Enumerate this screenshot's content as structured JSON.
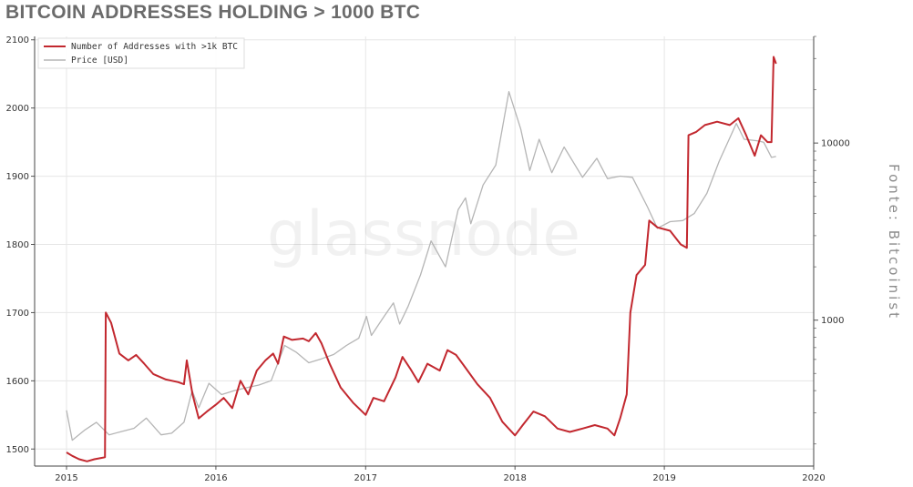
{
  "title": "BITCOIN ADDRESSES HOLDING > 1000 BTC",
  "source_credit": "Fonte: Bitcoinist",
  "watermark": "glassnode",
  "colors": {
    "addresses": "#c2282f",
    "price": "#b5b5b5",
    "grid": "#e6e6e6",
    "title": "#6b6b6b"
  },
  "chart_data": {
    "type": "line",
    "x_ticks": [
      "2015",
      "2016",
      "2017",
      "2018",
      "2019",
      "2020"
    ],
    "xlim": [
      "2014-10-15",
      "2020-01-01"
    ],
    "y_left": {
      "ticks": [
        "1500",
        "1600",
        "1700",
        "1800",
        "1900",
        "2000",
        "2100"
      ],
      "ylim": [
        1475,
        2105
      ]
    },
    "y_right": {
      "scale": "log",
      "ticks": [
        "1000",
        "10000"
      ],
      "ylim": [
        150,
        40000
      ]
    },
    "grid": true,
    "legend_placement": "top-left",
    "series": [
      {
        "name": "Number of Addresses with >1k BTC",
        "axis": "left",
        "points": [
          [
            "2015-01-01",
            1495
          ],
          [
            "2015-01-15",
            1490
          ],
          [
            "2015-02-01",
            1485
          ],
          [
            "2015-02-20",
            1482
          ],
          [
            "2015-03-10",
            1485
          ],
          [
            "2015-03-28",
            1487
          ],
          [
            "2015-04-05",
            1488
          ],
          [
            "2015-04-07",
            1700
          ],
          [
            "2015-04-20",
            1685
          ],
          [
            "2015-05-10",
            1640
          ],
          [
            "2015-06-01",
            1630
          ],
          [
            "2015-06-20",
            1638
          ],
          [
            "2015-07-10",
            1625
          ],
          [
            "2015-08-01",
            1610
          ],
          [
            "2015-09-01",
            1602
          ],
          [
            "2015-10-01",
            1598
          ],
          [
            "2015-10-15",
            1595
          ],
          [
            "2015-10-22",
            1630
          ],
          [
            "2015-11-05",
            1580
          ],
          [
            "2015-11-20",
            1545
          ],
          [
            "2015-12-10",
            1555
          ],
          [
            "2016-01-01",
            1565
          ],
          [
            "2016-01-20",
            1575
          ],
          [
            "2016-02-10",
            1560
          ],
          [
            "2016-03-01",
            1600
          ],
          [
            "2016-03-20",
            1580
          ],
          [
            "2016-04-10",
            1615
          ],
          [
            "2016-05-01",
            1630
          ],
          [
            "2016-05-20",
            1640
          ],
          [
            "2016-06-01",
            1625
          ],
          [
            "2016-06-15",
            1665
          ],
          [
            "2016-07-05",
            1660
          ],
          [
            "2016-08-01",
            1662
          ],
          [
            "2016-08-15",
            1658
          ],
          [
            "2016-09-01",
            1670
          ],
          [
            "2016-09-15",
            1655
          ],
          [
            "2016-10-05",
            1625
          ],
          [
            "2016-11-01",
            1590
          ],
          [
            "2016-12-01",
            1568
          ],
          [
            "2017-01-01",
            1550
          ],
          [
            "2017-01-20",
            1575
          ],
          [
            "2017-02-15",
            1570
          ],
          [
            "2017-03-15",
            1605
          ],
          [
            "2017-04-01",
            1635
          ],
          [
            "2017-04-20",
            1618
          ],
          [
            "2017-05-10",
            1598
          ],
          [
            "2017-06-01",
            1625
          ],
          [
            "2017-07-01",
            1615
          ],
          [
            "2017-07-20",
            1645
          ],
          [
            "2017-08-10",
            1638
          ],
          [
            "2017-09-01",
            1620
          ],
          [
            "2017-10-01",
            1595
          ],
          [
            "2017-11-01",
            1575
          ],
          [
            "2017-12-01",
            1540
          ],
          [
            "2018-01-01",
            1520
          ],
          [
            "2018-01-20",
            1535
          ],
          [
            "2018-02-15",
            1555
          ],
          [
            "2018-03-15",
            1548
          ],
          [
            "2018-04-15",
            1530
          ],
          [
            "2018-05-15",
            1525
          ],
          [
            "2018-06-15",
            1530
          ],
          [
            "2018-07-15",
            1535
          ],
          [
            "2018-08-15",
            1530
          ],
          [
            "2018-09-01",
            1520
          ],
          [
            "2018-09-15",
            1545
          ],
          [
            "2018-10-01",
            1580
          ],
          [
            "2018-10-10",
            1700
          ],
          [
            "2018-10-25",
            1755
          ],
          [
            "2018-11-15",
            1770
          ],
          [
            "2018-11-25",
            1835
          ],
          [
            "2018-12-15",
            1825
          ],
          [
            "2019-01-15",
            1820
          ],
          [
            "2019-02-10",
            1800
          ],
          [
            "2019-02-25",
            1795
          ],
          [
            "2019-03-01",
            1960
          ],
          [
            "2019-03-20",
            1965
          ],
          [
            "2019-04-10",
            1975
          ],
          [
            "2019-05-10",
            1980
          ],
          [
            "2019-06-10",
            1975
          ],
          [
            "2019-07-01",
            1985
          ],
          [
            "2019-07-20",
            1960
          ],
          [
            "2019-08-10",
            1930
          ],
          [
            "2019-08-25",
            1960
          ],
          [
            "2019-09-10",
            1950
          ],
          [
            "2019-09-20",
            1950
          ],
          [
            "2019-09-25",
            2075
          ],
          [
            "2019-10-01",
            2065
          ]
        ]
      },
      {
        "name": "Price [USD]",
        "axis": "right",
        "points": [
          [
            "2015-01-01",
            310
          ],
          [
            "2015-01-15",
            210
          ],
          [
            "2015-02-15",
            240
          ],
          [
            "2015-03-15",
            265
          ],
          [
            "2015-04-15",
            225
          ],
          [
            "2015-05-15",
            235
          ],
          [
            "2015-06-15",
            245
          ],
          [
            "2015-07-15",
            280
          ],
          [
            "2015-08-20",
            225
          ],
          [
            "2015-09-15",
            230
          ],
          [
            "2015-10-15",
            265
          ],
          [
            "2015-11-04",
            400
          ],
          [
            "2015-11-20",
            320
          ],
          [
            "2015-12-15",
            440
          ],
          [
            "2016-01-15",
            380
          ],
          [
            "2016-02-15",
            400
          ],
          [
            "2016-03-15",
            415
          ],
          [
            "2016-04-15",
            430
          ],
          [
            "2016-05-15",
            455
          ],
          [
            "2016-06-17",
            720
          ],
          [
            "2016-07-15",
            660
          ],
          [
            "2016-08-15",
            575
          ],
          [
            "2016-09-15",
            605
          ],
          [
            "2016-10-15",
            640
          ],
          [
            "2016-11-15",
            720
          ],
          [
            "2016-12-15",
            790
          ],
          [
            "2017-01-03",
            1050
          ],
          [
            "2017-01-15",
            820
          ],
          [
            "2017-02-15",
            1050
          ],
          [
            "2017-03-10",
            1250
          ],
          [
            "2017-03-25",
            950
          ],
          [
            "2017-04-15",
            1200
          ],
          [
            "2017-05-15",
            1800
          ],
          [
            "2017-06-10",
            2800
          ],
          [
            "2017-07-15",
            2000
          ],
          [
            "2017-08-15",
            4200
          ],
          [
            "2017-09-02",
            4900
          ],
          [
            "2017-09-15",
            3500
          ],
          [
            "2017-10-15",
            5800
          ],
          [
            "2017-11-15",
            7500
          ],
          [
            "2017-12-17",
            19500
          ],
          [
            "2018-01-15",
            12000
          ],
          [
            "2018-02-06",
            7000
          ],
          [
            "2018-03-01",
            10500
          ],
          [
            "2018-04-01",
            6800
          ],
          [
            "2018-05-01",
            9500
          ],
          [
            "2018-06-15",
            6400
          ],
          [
            "2018-07-20",
            8200
          ],
          [
            "2018-08-15",
            6300
          ],
          [
            "2018-09-15",
            6500
          ],
          [
            "2018-10-15",
            6400
          ],
          [
            "2018-11-20",
            4400
          ],
          [
            "2018-12-15",
            3300
          ],
          [
            "2019-01-15",
            3600
          ],
          [
            "2019-02-15",
            3650
          ],
          [
            "2019-03-15",
            4000
          ],
          [
            "2019-04-15",
            5200
          ],
          [
            "2019-05-15",
            7900
          ],
          [
            "2019-06-26",
            12900
          ],
          [
            "2019-07-15",
            10500
          ],
          [
            "2019-08-15",
            10300
          ],
          [
            "2019-09-01",
            10100
          ],
          [
            "2019-09-20",
            8300
          ],
          [
            "2019-10-01",
            8400
          ]
        ]
      }
    ]
  }
}
